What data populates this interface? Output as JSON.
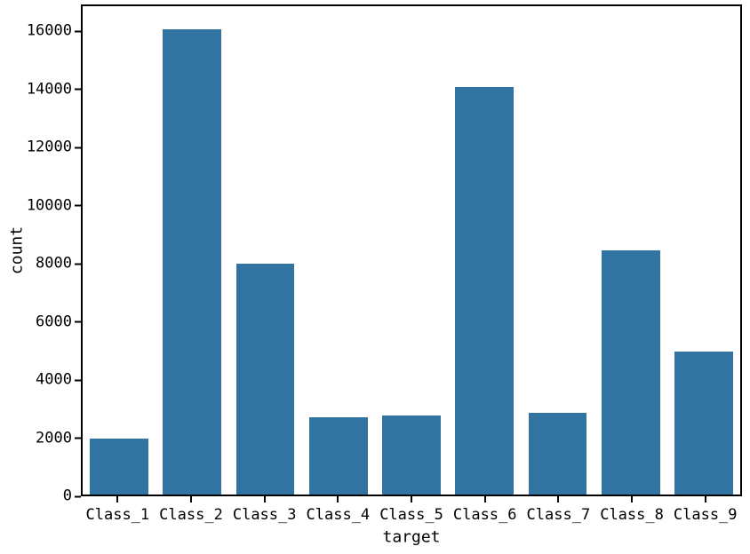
{
  "chart_data": {
    "type": "bar",
    "title": "",
    "xlabel": "target",
    "ylabel": "count",
    "categories": [
      "Class_1",
      "Class_2",
      "Class_3",
      "Class_4",
      "Class_5",
      "Class_6",
      "Class_7",
      "Class_8",
      "Class_9"
    ],
    "values": [
      1929,
      16122,
      8004,
      2691,
      2739,
      14135,
      2839,
      8464,
      4955
    ],
    "yticks": [
      0,
      2000,
      4000,
      6000,
      8000,
      10000,
      12000,
      14000,
      16000
    ],
    "ylim": [
      0,
      16928
    ],
    "grid": false,
    "legend": null,
    "bar_color": "#3274a1",
    "axis_color": "#000000",
    "background_color": "#ffffff"
  }
}
